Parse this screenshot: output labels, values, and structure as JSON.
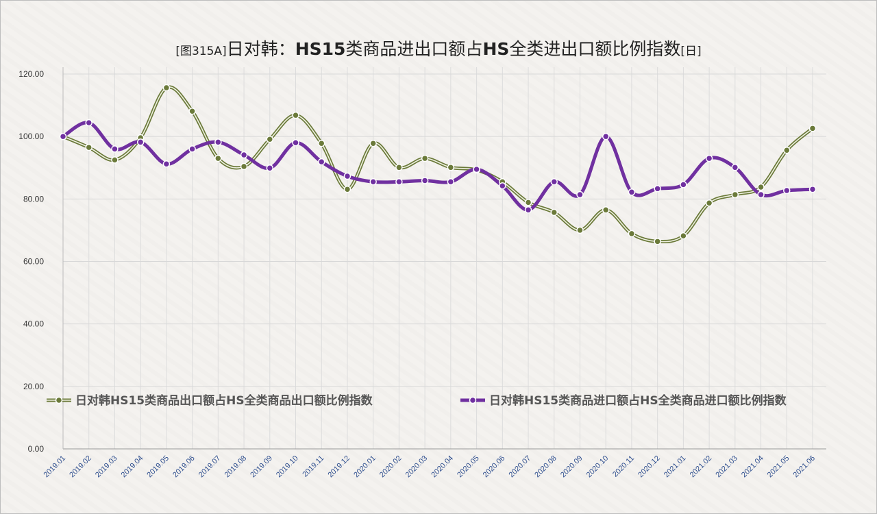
{
  "chart_data": {
    "type": "line",
    "title_segments": [
      {
        "text": "[图315A]",
        "style": "small"
      },
      {
        "text": "日对韩：",
        "style": "normal"
      },
      {
        "text": "HS15",
        "style": "bold"
      },
      {
        "text": "类商品进出口额占",
        "style": "normal"
      },
      {
        "text": "HS",
        "style": "bold"
      },
      {
        "text": "全类进出口额比例指数",
        "style": "normal"
      },
      {
        "text": "[日]",
        "style": "small"
      }
    ],
    "categories": [
      "2019.01",
      "2019.02",
      "2019.03",
      "2019.04",
      "2019.05",
      "2019.06",
      "2019.07",
      "2019.08",
      "2019.09",
      "2019.10",
      "2019.11",
      "2019.12",
      "2020.01",
      "2020.02",
      "2020.03",
      "2020.04",
      "2020.05",
      "2020.06",
      "2020.07",
      "2020.08",
      "2020.09",
      "2020.10",
      "2020.11",
      "2020.12",
      "2021.01",
      "2021.02",
      "2021.03",
      "2021.04",
      "2021.05",
      "2021.06"
    ],
    "yticks": [
      "0.00",
      "20.00",
      "40.00",
      "60.00",
      "80.00",
      "100.00",
      "120.00"
    ],
    "ylim": [
      0,
      120
    ],
    "grid": true,
    "legend_position": "inside-bottom",
    "series": [
      {
        "name": "日对韩HS15类商品出口额占HS全类商品出口额比例指数",
        "color": "#6b7a3a",
        "values": [
          100,
          96.5,
          92.5,
          99.6,
          115.6,
          108.1,
          93,
          90.4,
          99.1,
          106.8,
          97.8,
          83.1,
          97.8,
          90.1,
          93,
          90.1,
          89.3,
          85.5,
          78.9,
          75.7,
          70,
          76.5,
          68.9,
          66.4,
          68.2,
          78.7,
          81.4,
          83.8,
          95.6,
          102.6
        ]
      },
      {
        "name": "日对韩HS15类商品进口额占HS全类商品进口额比例指数",
        "color": "#7030a0",
        "values": [
          100,
          104.4,
          96,
          98.2,
          91.2,
          96,
          98.2,
          94.1,
          89.9,
          98,
          91.9,
          87.3,
          85.5,
          85.5,
          85.9,
          85.5,
          89.5,
          84.2,
          76.5,
          85.5,
          81.4,
          100,
          82.2,
          83.3,
          84.6,
          93,
          90.1,
          81.4,
          82.7,
          83.1
        ]
      }
    ]
  }
}
